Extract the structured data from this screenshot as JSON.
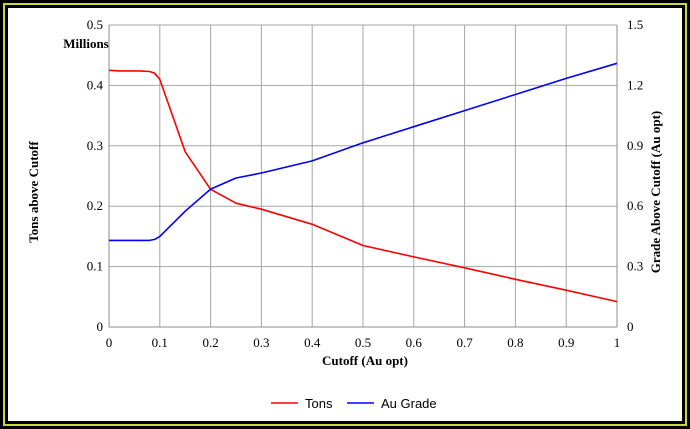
{
  "chart_data": {
    "type": "line",
    "title": "",
    "xlabel": "Cutoff (Au opt)",
    "ylabel_left": "Tons above Cutoff",
    "ylabel_left_unit": "Millions",
    "ylabel_right": "Grade Above Cutoff (Au opt)",
    "xlim": [
      0,
      1
    ],
    "ylim_left": [
      0,
      0.5
    ],
    "ylim_right": [
      0,
      1.5
    ],
    "x_ticks": [
      "0",
      "0.1",
      "0.2",
      "0.3",
      "0.4",
      "0.5",
      "0.6",
      "0.7",
      "0.8",
      "0.9",
      "1"
    ],
    "y_left_ticks": [
      "0",
      "0.1",
      "0.2",
      "0.3",
      "0.4",
      "0.5"
    ],
    "y_right_ticks": [
      "0",
      "0.3",
      "0.6",
      "0.9",
      "1.2",
      "1.5"
    ],
    "grid": true,
    "legend_position": "bottom",
    "series": [
      {
        "name": "Tons",
        "axis": "left",
        "color": "#ff0000",
        "x": [
          0,
          0.02,
          0.04,
          0.06,
          0.08,
          0.09,
          0.1,
          0.15,
          0.2,
          0.25,
          0.3,
          0.4,
          0.5,
          0.6,
          0.7,
          0.8,
          0.9,
          1.0
        ],
        "y": [
          0.425,
          0.424,
          0.424,
          0.424,
          0.423,
          0.42,
          0.41,
          0.29,
          0.228,
          0.205,
          0.195,
          0.17,
          0.135,
          0.116,
          0.098,
          0.079,
          0.061,
          0.042
        ]
      },
      {
        "name": "Au Grade",
        "axis": "right",
        "color": "#0000ff",
        "x": [
          0,
          0.02,
          0.04,
          0.06,
          0.08,
          0.09,
          0.1,
          0.15,
          0.2,
          0.25,
          0.3,
          0.4,
          0.5,
          0.6,
          0.7,
          0.8,
          0.9,
          1.0
        ],
        "y": [
          0.43,
          0.43,
          0.43,
          0.43,
          0.43,
          0.435,
          0.45,
          0.575,
          0.685,
          0.74,
          0.765,
          0.825,
          0.915,
          0.995,
          1.075,
          1.155,
          1.235,
          1.31
        ]
      }
    ]
  }
}
